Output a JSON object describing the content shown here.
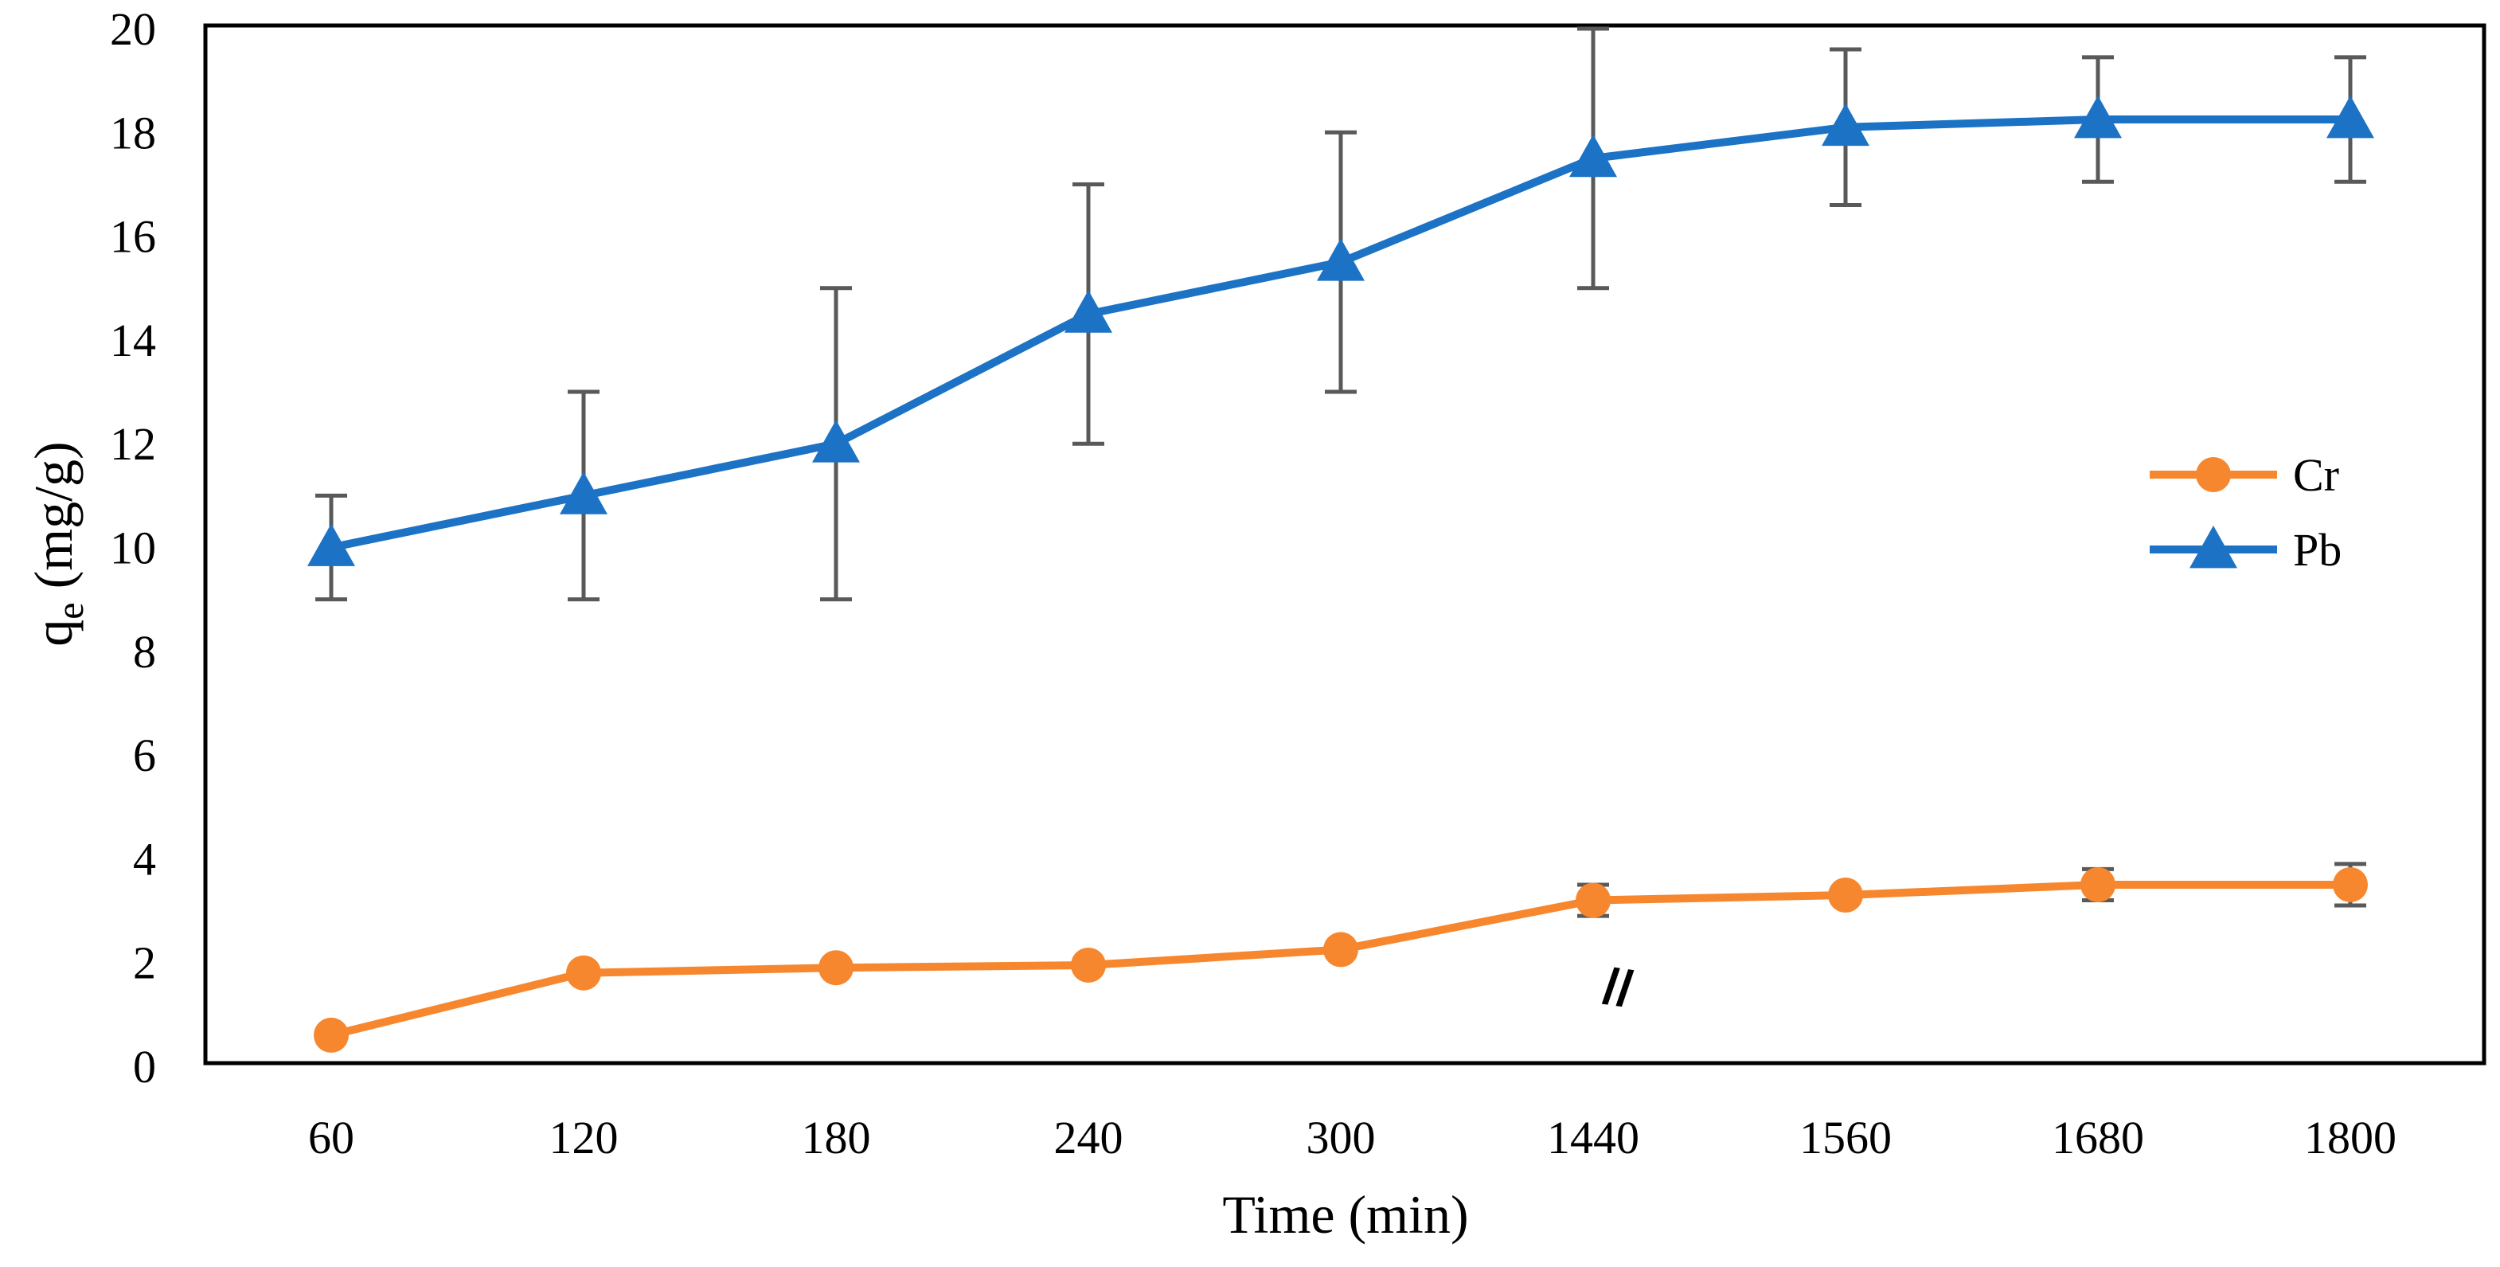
{
  "chart_data": {
    "type": "line",
    "xlabel": "Time (min)",
    "ylabel": {
      "main": "q",
      "sub": "e",
      "rest": " (mg/g)"
    },
    "categories": [
      "60",
      "120",
      "180",
      "240",
      "300",
      "1440",
      "1560",
      "1680",
      "1800"
    ],
    "ylim": [
      0,
      20
    ],
    "yticks": [
      0,
      2,
      4,
      6,
      8,
      10,
      12,
      14,
      16,
      18,
      20
    ],
    "grid": false,
    "legend": {
      "position": "right"
    },
    "axis_break_marker": "//",
    "series": [
      {
        "name": "Cr",
        "color": "#F7872E",
        "marker": "circle",
        "values": [
          0.6,
          1.8,
          1.9,
          1.95,
          2.25,
          3.2,
          3.3,
          3.5,
          3.5
        ],
        "error": [
          null,
          null,
          null,
          null,
          null,
          0.3,
          null,
          0.3,
          0.4
        ]
      },
      {
        "name": "Pb",
        "color": "#1C72C4",
        "marker": "triangle",
        "values": [
          10,
          11,
          12,
          14.5,
          15.5,
          17.5,
          18.1,
          18.25,
          18.25
        ],
        "error": [
          1,
          2,
          3,
          2.5,
          2.5,
          2.5,
          1.5,
          1.2,
          1.2
        ]
      }
    ],
    "errorbar_color": "#595959"
  }
}
